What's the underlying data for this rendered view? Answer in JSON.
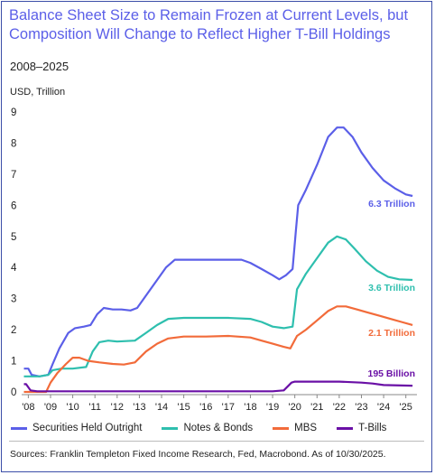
{
  "chart_data": {
    "type": "line",
    "title": "Balance Sheet Size to Remain Frozen at Current Levels, but Composition Will Change to Reflect Higher T-Bill Holdings",
    "subtitle": "2008–2025",
    "ylabel": "USD, Trillion",
    "ylim": [
      0,
      9
    ],
    "xlim": [
      2007.7,
      2025.5
    ],
    "y_ticks": [
      "0",
      "1",
      "2",
      "3",
      "4",
      "5",
      "6",
      "7",
      "8",
      "9"
    ],
    "x_ticks": [
      {
        "x": 2008,
        "label": "'08"
      },
      {
        "x": 2009,
        "label": "'09"
      },
      {
        "x": 2010,
        "label": "'10"
      },
      {
        "x": 2011,
        "label": "'11"
      },
      {
        "x": 2012,
        "label": "'12"
      },
      {
        "x": 2013,
        "label": "'13"
      },
      {
        "x": 2014,
        "label": "'14"
      },
      {
        "x": 2015,
        "label": "'15"
      },
      {
        "x": 2016,
        "label": "'16"
      },
      {
        "x": 2017,
        "label": "'17"
      },
      {
        "x": 2018,
        "label": "'18"
      },
      {
        "x": 2019,
        "label": "'19"
      },
      {
        "x": 2020,
        "label": "'20"
      },
      {
        "x": 2021,
        "label": "'21"
      },
      {
        "x": 2022,
        "label": "'22"
      },
      {
        "x": 2023,
        "label": "'23"
      },
      {
        "x": 2024,
        "label": "'24"
      },
      {
        "x": 2025,
        "label": "'25"
      }
    ],
    "grid": false,
    "legend_position": "bottom",
    "series": [
      {
        "name": "Securities Held Outright",
        "color": "#5b5fe8",
        "end_label": "6.3 Trillion",
        "points": [
          [
            2007.8,
            0.75
          ],
          [
            2008.0,
            0.75
          ],
          [
            2008.15,
            0.55
          ],
          [
            2008.5,
            0.5
          ],
          [
            2008.9,
            0.55
          ],
          [
            2009.1,
            0.9
          ],
          [
            2009.4,
            1.4
          ],
          [
            2009.8,
            1.9
          ],
          [
            2010.1,
            2.05
          ],
          [
            2010.5,
            2.1
          ],
          [
            2010.8,
            2.15
          ],
          [
            2011.1,
            2.5
          ],
          [
            2011.4,
            2.7
          ],
          [
            2011.8,
            2.65
          ],
          [
            2012.2,
            2.65
          ],
          [
            2012.6,
            2.62
          ],
          [
            2012.9,
            2.7
          ],
          [
            2013.3,
            3.1
          ],
          [
            2013.8,
            3.6
          ],
          [
            2014.2,
            4.0
          ],
          [
            2014.6,
            4.25
          ],
          [
            2015.0,
            4.25
          ],
          [
            2016.0,
            4.25
          ],
          [
            2017.0,
            4.25
          ],
          [
            2017.6,
            4.25
          ],
          [
            2018.0,
            4.15
          ],
          [
            2018.5,
            3.95
          ],
          [
            2019.0,
            3.75
          ],
          [
            2019.3,
            3.62
          ],
          [
            2019.6,
            3.75
          ],
          [
            2019.9,
            3.95
          ],
          [
            2020.05,
            5.2
          ],
          [
            2020.15,
            6.0
          ],
          [
            2020.5,
            6.5
          ],
          [
            2021.0,
            7.3
          ],
          [
            2021.5,
            8.2
          ],
          [
            2021.9,
            8.5
          ],
          [
            2022.2,
            8.5
          ],
          [
            2022.6,
            8.2
          ],
          [
            2023.0,
            7.7
          ],
          [
            2023.5,
            7.2
          ],
          [
            2024.0,
            6.8
          ],
          [
            2024.5,
            6.55
          ],
          [
            2025.0,
            6.35
          ],
          [
            2025.3,
            6.3
          ]
        ]
      },
      {
        "name": "Notes & Bonds",
        "color": "#2ebfae",
        "end_label": "3.6 Trillion",
        "points": [
          [
            2007.8,
            0.5
          ],
          [
            2008.5,
            0.5
          ],
          [
            2008.9,
            0.55
          ],
          [
            2009.1,
            0.7
          ],
          [
            2009.5,
            0.75
          ],
          [
            2010.0,
            0.75
          ],
          [
            2010.6,
            0.8
          ],
          [
            2010.9,
            1.3
          ],
          [
            2011.2,
            1.6
          ],
          [
            2011.6,
            1.65
          ],
          [
            2012.0,
            1.62
          ],
          [
            2012.8,
            1.65
          ],
          [
            2013.3,
            1.9
          ],
          [
            2013.8,
            2.15
          ],
          [
            2014.3,
            2.35
          ],
          [
            2015.0,
            2.38
          ],
          [
            2016.0,
            2.38
          ],
          [
            2017.0,
            2.38
          ],
          [
            2018.0,
            2.35
          ],
          [
            2018.5,
            2.25
          ],
          [
            2019.0,
            2.1
          ],
          [
            2019.5,
            2.05
          ],
          [
            2019.9,
            2.1
          ],
          [
            2020.1,
            3.3
          ],
          [
            2020.5,
            3.8
          ],
          [
            2021.0,
            4.3
          ],
          [
            2021.5,
            4.8
          ],
          [
            2021.9,
            5.0
          ],
          [
            2022.3,
            4.9
          ],
          [
            2022.7,
            4.6
          ],
          [
            2023.2,
            4.2
          ],
          [
            2023.7,
            3.9
          ],
          [
            2024.2,
            3.7
          ],
          [
            2024.7,
            3.62
          ],
          [
            2025.3,
            3.6
          ]
        ]
      },
      {
        "name": "MBS",
        "color": "#f26b3a",
        "end_label": "2.1 Trillion",
        "points": [
          [
            2007.8,
            0.0
          ],
          [
            2008.8,
            0.0
          ],
          [
            2009.0,
            0.3
          ],
          [
            2009.3,
            0.6
          ],
          [
            2009.7,
            0.9
          ],
          [
            2010.0,
            1.1
          ],
          [
            2010.3,
            1.1
          ],
          [
            2010.7,
            1.0
          ],
          [
            2011.2,
            0.95
          ],
          [
            2011.8,
            0.9
          ],
          [
            2012.3,
            0.88
          ],
          [
            2012.8,
            0.95
          ],
          [
            2013.3,
            1.3
          ],
          [
            2013.8,
            1.55
          ],
          [
            2014.3,
            1.72
          ],
          [
            2015.0,
            1.78
          ],
          [
            2016.0,
            1.78
          ],
          [
            2017.0,
            1.8
          ],
          [
            2018.0,
            1.75
          ],
          [
            2018.5,
            1.65
          ],
          [
            2019.0,
            1.55
          ],
          [
            2019.5,
            1.45
          ],
          [
            2019.8,
            1.4
          ],
          [
            2020.1,
            1.8
          ],
          [
            2020.5,
            2.0
          ],
          [
            2021.0,
            2.3
          ],
          [
            2021.5,
            2.6
          ],
          [
            2021.9,
            2.75
          ],
          [
            2022.3,
            2.75
          ],
          [
            2022.8,
            2.65
          ],
          [
            2023.3,
            2.55
          ],
          [
            2023.8,
            2.45
          ],
          [
            2024.3,
            2.35
          ],
          [
            2024.8,
            2.25
          ],
          [
            2025.3,
            2.15
          ]
        ]
      },
      {
        "name": "T-Bills",
        "color": "#6a10a6",
        "end_label": "195 Billion",
        "points": [
          [
            2007.8,
            0.25
          ],
          [
            2007.9,
            0.25
          ],
          [
            2008.1,
            0.05
          ],
          [
            2008.4,
            0.02
          ],
          [
            2009.0,
            0.02
          ],
          [
            2012.0,
            0.02
          ],
          [
            2019.0,
            0.02
          ],
          [
            2019.5,
            0.05
          ],
          [
            2019.85,
            0.3
          ],
          [
            2020.0,
            0.33
          ],
          [
            2021.0,
            0.33
          ],
          [
            2022.0,
            0.33
          ],
          [
            2023.0,
            0.3
          ],
          [
            2023.5,
            0.27
          ],
          [
            2024.0,
            0.22
          ],
          [
            2025.3,
            0.2
          ]
        ]
      }
    ]
  },
  "source": "Sources: Franklin Templeton Fixed Income Research, Fed, Macrobond. As of 10/30/2025."
}
